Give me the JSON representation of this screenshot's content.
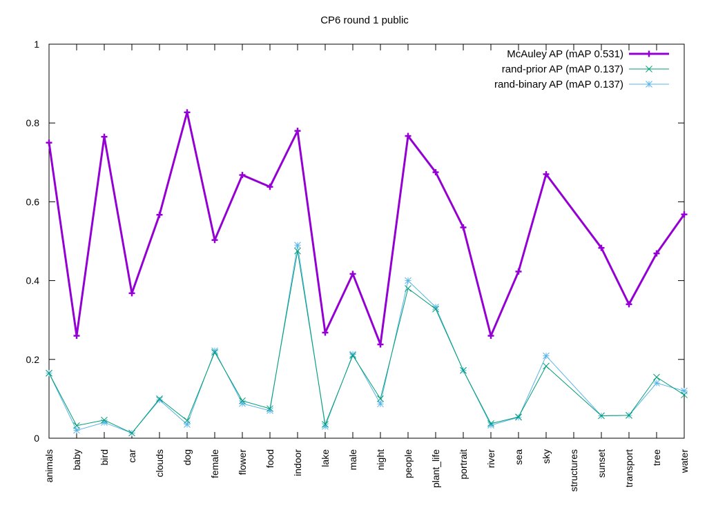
{
  "chart_data": {
    "type": "line",
    "title": "CP6 round 1 public",
    "xlabel": "",
    "ylabel": "",
    "ylim": [
      0,
      1
    ],
    "yticks": [
      "0",
      "0.2",
      "0.4",
      "0.6",
      "0.8",
      "1"
    ],
    "grid": false,
    "legend_position": "top-right",
    "categories": [
      "animals",
      "baby",
      "bird",
      "car",
      "clouds",
      "dog",
      "female",
      "flower",
      "food",
      "indoor",
      "lake",
      "male",
      "night",
      "people",
      "plant_life",
      "portrait",
      "river",
      "sea",
      "sky",
      "structures",
      "sunset",
      "transport",
      "tree",
      "water"
    ],
    "series": [
      {
        "name": "McAuley AP (mAP 0.531)",
        "color": "#9400d3",
        "marker": "plus",
        "values": [
          0.75,
          0.26,
          0.765,
          0.368,
          0.567,
          0.827,
          0.503,
          0.668,
          0.638,
          0.78,
          0.268,
          0.417,
          0.238,
          0.767,
          0.675,
          0.535,
          0.26,
          0.423,
          0.67,
          null,
          0.483,
          0.34,
          0.469,
          0.568
        ]
      },
      {
        "name": "rand-prior AP (mAP 0.137)",
        "color": "#009e73",
        "marker": "cross",
        "values": [
          0.165,
          0.032,
          0.046,
          0.013,
          0.1,
          0.045,
          0.218,
          0.095,
          0.075,
          0.475,
          0.035,
          0.21,
          0.1,
          0.38,
          0.328,
          0.172,
          0.037,
          0.054,
          0.183,
          null,
          0.057,
          0.058,
          0.155,
          0.11
        ]
      },
      {
        "name": "rand-binary AP (mAP 0.137)",
        "color": "#56b4e9",
        "marker": "star",
        "values": [
          0.165,
          0.02,
          0.04,
          0.013,
          0.097,
          0.035,
          0.222,
          0.088,
          0.07,
          0.49,
          0.03,
          0.213,
          0.087,
          0.4,
          0.333,
          0.172,
          0.033,
          0.053,
          0.209,
          null,
          0.057,
          0.058,
          0.14,
          0.12
        ]
      }
    ]
  }
}
